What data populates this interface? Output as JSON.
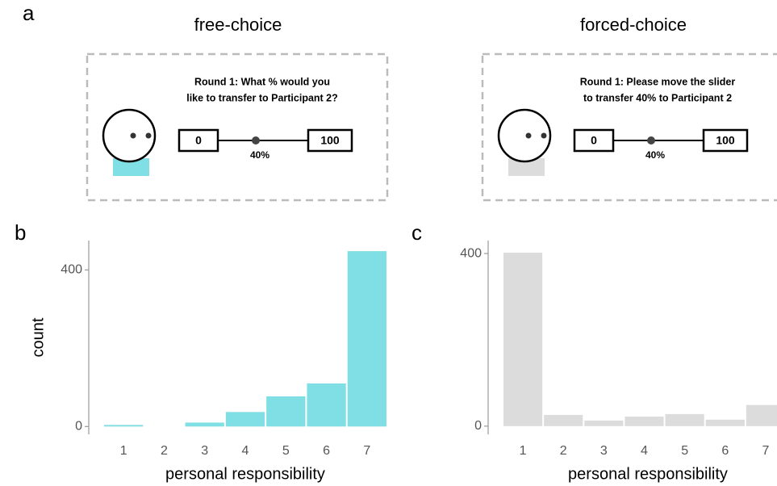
{
  "panel_labels": [
    "a",
    "b",
    "c"
  ],
  "conditions": [
    {
      "title": "free-choice",
      "prompt_lines": [
        "Round 1: What % would you",
        "like to transfer to Participant 2?"
      ],
      "slider_min": "0",
      "slider_max": "100",
      "slider_value": "40%"
    },
    {
      "title": "forced-choice",
      "prompt_lines": [
        "Round 1: Please move the slider",
        "to transfer 40% to Participant 2"
      ],
      "slider_min": "0",
      "slider_max": "100",
      "slider_value": "40%"
    }
  ],
  "chart_data": [
    {
      "type": "bar",
      "categories": [
        "1",
        "2",
        "3",
        "4",
        "5",
        "6",
        "7"
      ],
      "values": [
        4,
        0,
        10,
        37,
        77,
        110,
        448
      ],
      "color": "#7fdfe4",
      "ylim": [
        -20,
        475
      ],
      "yticks": [
        0,
        400
      ],
      "xlabel": "personal responsibility",
      "ylabel": "count"
    },
    {
      "type": "bar",
      "categories": [
        "1",
        "2",
        "3",
        "4",
        "5",
        "6",
        "7"
      ],
      "values": [
        402,
        26,
        13,
        22,
        28,
        15,
        49
      ],
      "color": "#dcdcdc",
      "ylim": [
        -19,
        430
      ],
      "yticks": [
        0,
        400
      ],
      "xlabel": "personal responsibility"
    }
  ]
}
